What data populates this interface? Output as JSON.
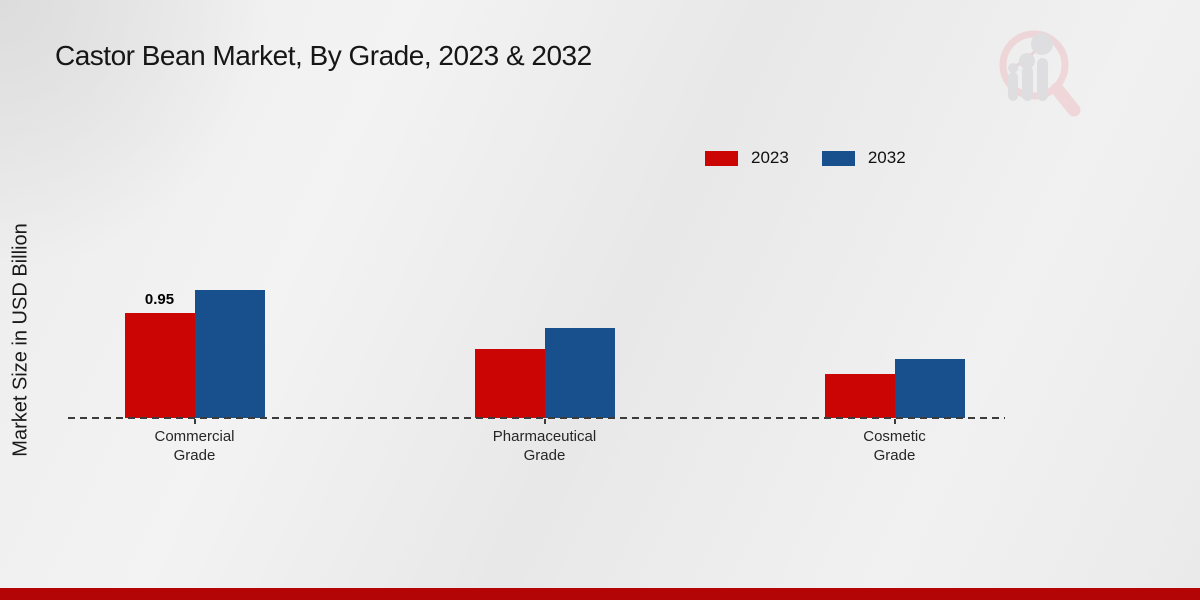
{
  "chart_data": {
    "type": "bar",
    "title": "Castor Bean Market, By Grade, 2023 & 2032",
    "ylabel": "Market Size in USD Billion",
    "xlabel": "",
    "categories": [
      "Commercial Grade",
      "Pharmaceutical Grade",
      "Cosmetic Grade"
    ],
    "series": [
      {
        "name": "2023",
        "color": "#cb0404",
        "values": [
          0.95,
          0.62,
          0.4
        ],
        "value_labels": [
          "0.95",
          null,
          null
        ]
      },
      {
        "name": "2032",
        "color": "#17508c",
        "values": [
          1.16,
          0.81,
          0.53
        ],
        "value_labels": [
          null,
          null,
          null
        ]
      }
    ],
    "ylim": [
      0,
      1.3
    ],
    "grid": false,
    "legend_position": "top-right",
    "baseline_style": "dashed"
  },
  "icons": {
    "logo": "magnifier-bar-chart-watermark-icon"
  },
  "colors": {
    "background": "#ebebeb",
    "bar_2023": "#cb0404",
    "bar_2032": "#17508c",
    "bottom_strip": "#b30505",
    "baseline": "#3c3c3c",
    "title_text": "#161616",
    "category_text": "#262626"
  }
}
